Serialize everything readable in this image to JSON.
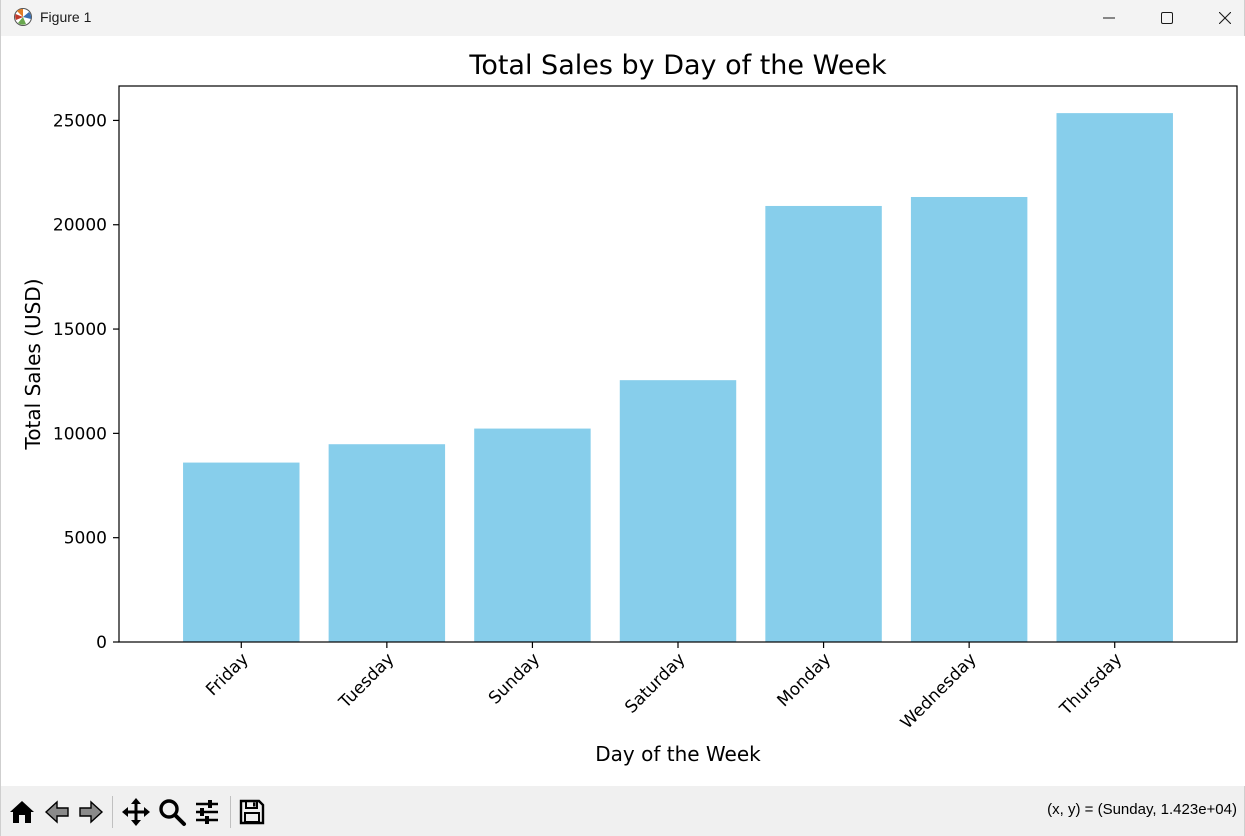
{
  "window": {
    "title": "Figure 1"
  },
  "status": {
    "coordinates": "(x, y) = (Sunday, 1.423e+04)"
  },
  "toolbar": {
    "tools": [
      "home-icon",
      "back-arrow-icon",
      "forward-arrow-icon",
      "pan-icon",
      "zoom-icon",
      "configure-subplots-icon",
      "save-icon"
    ]
  },
  "colors": {
    "bar": "#87ceeb",
    "axis": "#000000",
    "toolbar_bg": "#f0f0f0",
    "titlebar_bg": "#f3f3f3"
  },
  "chart_data": {
    "type": "bar",
    "title": "Total Sales by Day of the Week",
    "xlabel": "Day of the Week",
    "ylabel": "Total Sales (USD)",
    "categories": [
      "Friday",
      "Tuesday",
      "Sunday",
      "Saturday",
      "Monday",
      "Wednesday",
      "Thursday"
    ],
    "values": [
      8600,
      9480,
      10230,
      12550,
      20900,
      21330,
      25350
    ],
    "ylim": [
      0,
      26650
    ],
    "yticks": [
      0,
      5000,
      10000,
      15000,
      20000,
      25000
    ],
    "ytick_labels": [
      "0",
      "5000",
      "10000",
      "15000",
      "20000",
      "25000"
    ],
    "xtick_rotation": 45,
    "grid": false,
    "legend": "none"
  }
}
